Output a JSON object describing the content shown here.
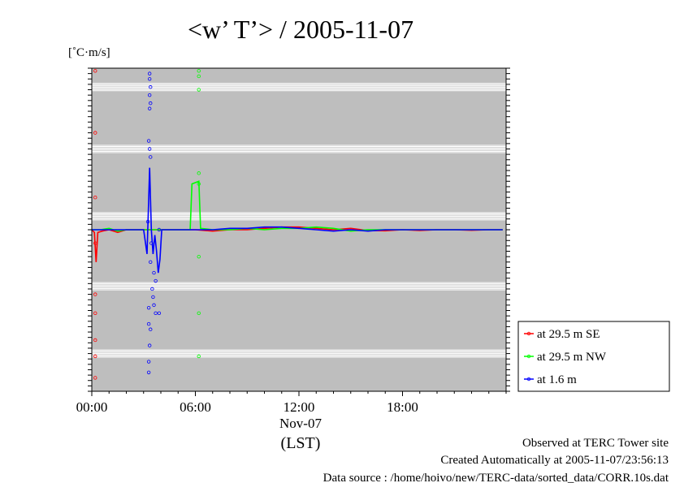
{
  "chart_data": {
    "type": "line",
    "title": "<w’ T’> / 2005-11-07",
    "ylabel": "[˚C·m/s]",
    "x_tick_labels": [
      "00:00",
      "06:00",
      "12:00",
      "18:00"
    ],
    "x_ticks_hours": [
      0,
      6,
      12,
      18
    ],
    "x_date_label": "Nov-07",
    "x_zone_label": "(LST)",
    "xlim_hours": [
      0,
      24
    ],
    "ylim": [
      -0.6,
      0.6
    ],
    "grid": true,
    "legend_position": "right-bottom",
    "series": [
      {
        "name": "at 29.5 m SE",
        "color": "#ff0000",
        "line": [
          [
            0,
            0.0
          ],
          [
            0.15,
            -0.01
          ],
          [
            0.25,
            -0.12
          ],
          [
            0.35,
            -0.01
          ],
          [
            0.6,
            -0.005
          ],
          [
            1,
            0.0
          ],
          [
            1.5,
            -0.01
          ],
          [
            2,
            0.0
          ],
          [
            3,
            0.0
          ],
          [
            4,
            0.0
          ],
          [
            5,
            0.0
          ],
          [
            6,
            0.0
          ],
          [
            7,
            -0.005
          ],
          [
            8,
            0.0
          ],
          [
            9,
            0.0
          ],
          [
            10,
            0.005
          ],
          [
            11,
            0.01
          ],
          [
            12,
            0.01
          ],
          [
            13,
            0.005
          ],
          [
            14,
            0.0
          ],
          [
            15,
            0.005
          ],
          [
            16,
            -0.003
          ],
          [
            17,
            -0.004
          ],
          [
            18,
            0.0
          ],
          [
            19,
            -0.003
          ],
          [
            20,
            0.0
          ],
          [
            21,
            0.0
          ],
          [
            22,
            -0.002
          ],
          [
            23,
            0.0
          ],
          [
            23.8,
            0.0
          ]
        ],
        "points": [
          [
            0.2,
            0.59
          ],
          [
            0.2,
            0.36
          ],
          [
            0.2,
            0.12
          ],
          [
            0.2,
            -0.24
          ],
          [
            0.2,
            -0.31
          ],
          [
            0.2,
            -0.41
          ],
          [
            0.2,
            -0.47
          ],
          [
            0.2,
            -0.55
          ],
          [
            0.2,
            -0.05
          ]
        ]
      },
      {
        "name": "at 29.5 m NW",
        "color": "#00ff00",
        "line": [
          [
            0,
            0.0
          ],
          [
            0.5,
            0.0
          ],
          [
            1,
            0.005
          ],
          [
            1.5,
            -0.005
          ],
          [
            2,
            0.0
          ],
          [
            3,
            0.0
          ],
          [
            4,
            0.0
          ],
          [
            5,
            0.0
          ],
          [
            5.7,
            0.0
          ],
          [
            5.8,
            0.17
          ],
          [
            6.2,
            0.18
          ],
          [
            6.3,
            0.005
          ],
          [
            7,
            0.0
          ],
          [
            8,
            0.0
          ],
          [
            9,
            0.005
          ],
          [
            10,
            0.0
          ],
          [
            11,
            0.005
          ],
          [
            12,
            0.005
          ],
          [
            13,
            0.01
          ],
          [
            14,
            0.005
          ],
          [
            15,
            -0.005
          ],
          [
            16,
            0.0
          ],
          [
            17,
            0.0
          ],
          [
            18,
            0.0
          ],
          [
            19,
            0.0
          ],
          [
            20,
            0.0
          ],
          [
            21,
            0.0
          ],
          [
            22,
            0.0
          ],
          [
            23,
            0.0
          ],
          [
            23.8,
            0.0
          ]
        ],
        "points": [
          [
            6.2,
            0.59
          ],
          [
            6.2,
            0.57
          ],
          [
            6.2,
            0.52
          ],
          [
            6.2,
            0.21
          ],
          [
            6.2,
            0.17
          ],
          [
            6.2,
            -0.1
          ],
          [
            6.2,
            -0.31
          ],
          [
            6.2,
            -0.47
          ]
        ]
      },
      {
        "name": "at 1.6 m",
        "color": "#0000ff",
        "line": [
          [
            0,
            0.0
          ],
          [
            1,
            0.0
          ],
          [
            2,
            0.0
          ],
          [
            3,
            0.0
          ],
          [
            3.2,
            -0.09
          ],
          [
            3.35,
            0.23
          ],
          [
            3.45,
            0.0
          ],
          [
            3.55,
            -0.09
          ],
          [
            3.65,
            -0.02
          ],
          [
            3.75,
            -0.08
          ],
          [
            3.85,
            -0.16
          ],
          [
            3.95,
            -0.11
          ],
          [
            4.05,
            0.0
          ],
          [
            4.5,
            0.0
          ],
          [
            5,
            0.0
          ],
          [
            6,
            0.0
          ],
          [
            7,
            0.0
          ],
          [
            8,
            0.005
          ],
          [
            9,
            0.005
          ],
          [
            10,
            0.01
          ],
          [
            11,
            0.01
          ],
          [
            12,
            0.005
          ],
          [
            13,
            0.0
          ],
          [
            14,
            -0.005
          ],
          [
            15,
            0.0
          ],
          [
            16,
            -0.005
          ],
          [
            17,
            0.0
          ],
          [
            18,
            0.0
          ],
          [
            19,
            0.0
          ],
          [
            20,
            0.0
          ],
          [
            21,
            0.0
          ],
          [
            22,
            0.0
          ],
          [
            23,
            0.0
          ],
          [
            23.8,
            0.0
          ]
        ],
        "points": [
          [
            3.35,
            0.58
          ],
          [
            3.35,
            0.56
          ],
          [
            3.4,
            0.53
          ],
          [
            3.35,
            0.5
          ],
          [
            3.4,
            0.47
          ],
          [
            3.35,
            0.45
          ],
          [
            3.3,
            0.33
          ],
          [
            3.35,
            0.3
          ],
          [
            3.4,
            0.27
          ],
          [
            3.25,
            0.03
          ],
          [
            3.4,
            -0.12
          ],
          [
            3.6,
            -0.16
          ],
          [
            3.7,
            -0.19
          ],
          [
            3.5,
            -0.22
          ],
          [
            3.55,
            -0.25
          ],
          [
            3.6,
            -0.28
          ],
          [
            3.3,
            -0.29
          ],
          [
            3.7,
            -0.31
          ],
          [
            3.9,
            -0.31
          ],
          [
            3.3,
            -0.35
          ],
          [
            3.4,
            -0.37
          ],
          [
            3.35,
            -0.43
          ],
          [
            3.3,
            -0.49
          ],
          [
            3.3,
            -0.53
          ],
          [
            3.45,
            -0.05
          ],
          [
            3.9,
            0.0
          ]
        ]
      }
    ]
  },
  "footer": {
    "line1": "Observed at TERC Tower site",
    "line2": "Created Automatically at 2005-11-07/23:56:13",
    "line3": "Data source : /home/hoivo/new/TERC-data/sorted_data/CORR.10s.dat"
  }
}
